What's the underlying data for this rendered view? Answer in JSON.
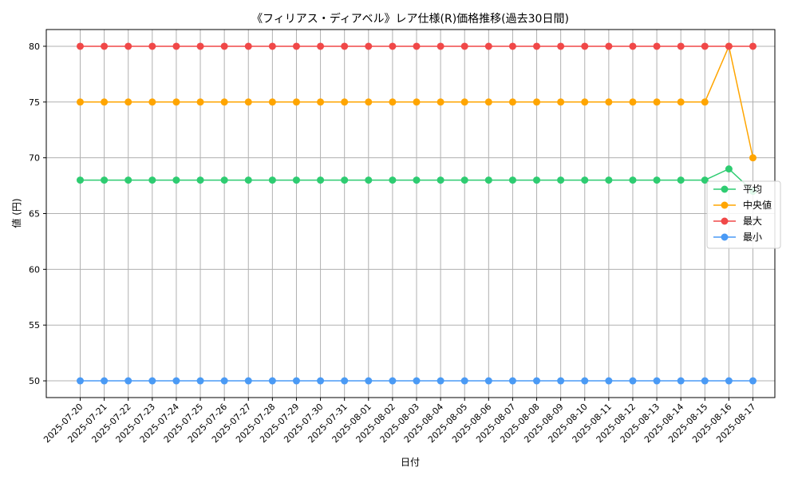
{
  "chart_data": {
    "type": "line",
    "title": "《フィリアス・ディアベル》レア仕様(R)価格推移(過去30日間)",
    "xlabel": "日付",
    "ylabel": "値 (円)",
    "ylim": [
      48.5,
      81.5
    ],
    "yticks": [
      50,
      55,
      60,
      65,
      70,
      75,
      80
    ],
    "grid": true,
    "legend_position": "right",
    "categories": [
      "2025-07-20",
      "2025-07-21",
      "2025-07-22",
      "2025-07-23",
      "2025-07-24",
      "2025-07-25",
      "2025-07-26",
      "2025-07-27",
      "2025-07-28",
      "2025-07-29",
      "2025-07-30",
      "2025-07-31",
      "2025-08-01",
      "2025-08-02",
      "2025-08-03",
      "2025-08-04",
      "2025-08-05",
      "2025-08-06",
      "2025-08-07",
      "2025-08-08",
      "2025-08-09",
      "2025-08-10",
      "2025-08-11",
      "2025-08-12",
      "2025-08-13",
      "2025-08-14",
      "2025-08-15",
      "2025-08-16",
      "2025-08-17"
    ],
    "series": [
      {
        "name": "平均",
        "color": "#2ecc71",
        "values": [
          68,
          68,
          68,
          68,
          68,
          68,
          68,
          68,
          68,
          68,
          68,
          68,
          68,
          68,
          68,
          68,
          68,
          68,
          68,
          68,
          68,
          68,
          68,
          68,
          68,
          68,
          68,
          69,
          67
        ]
      },
      {
        "name": "中央値",
        "color": "#ffa500",
        "values": [
          75,
          75,
          75,
          75,
          75,
          75,
          75,
          75,
          75,
          75,
          75,
          75,
          75,
          75,
          75,
          75,
          75,
          75,
          75,
          75,
          75,
          75,
          75,
          75,
          75,
          75,
          75,
          80,
          70
        ]
      },
      {
        "name": "最大",
        "color": "#f04848",
        "values": [
          80,
          80,
          80,
          80,
          80,
          80,
          80,
          80,
          80,
          80,
          80,
          80,
          80,
          80,
          80,
          80,
          80,
          80,
          80,
          80,
          80,
          80,
          80,
          80,
          80,
          80,
          80,
          80,
          80
        ]
      },
      {
        "name": "最小",
        "color": "#4a9af5",
        "values": [
          50,
          50,
          50,
          50,
          50,
          50,
          50,
          50,
          50,
          50,
          50,
          50,
          50,
          50,
          50,
          50,
          50,
          50,
          50,
          50,
          50,
          50,
          50,
          50,
          50,
          50,
          50,
          50,
          50
        ]
      }
    ]
  }
}
